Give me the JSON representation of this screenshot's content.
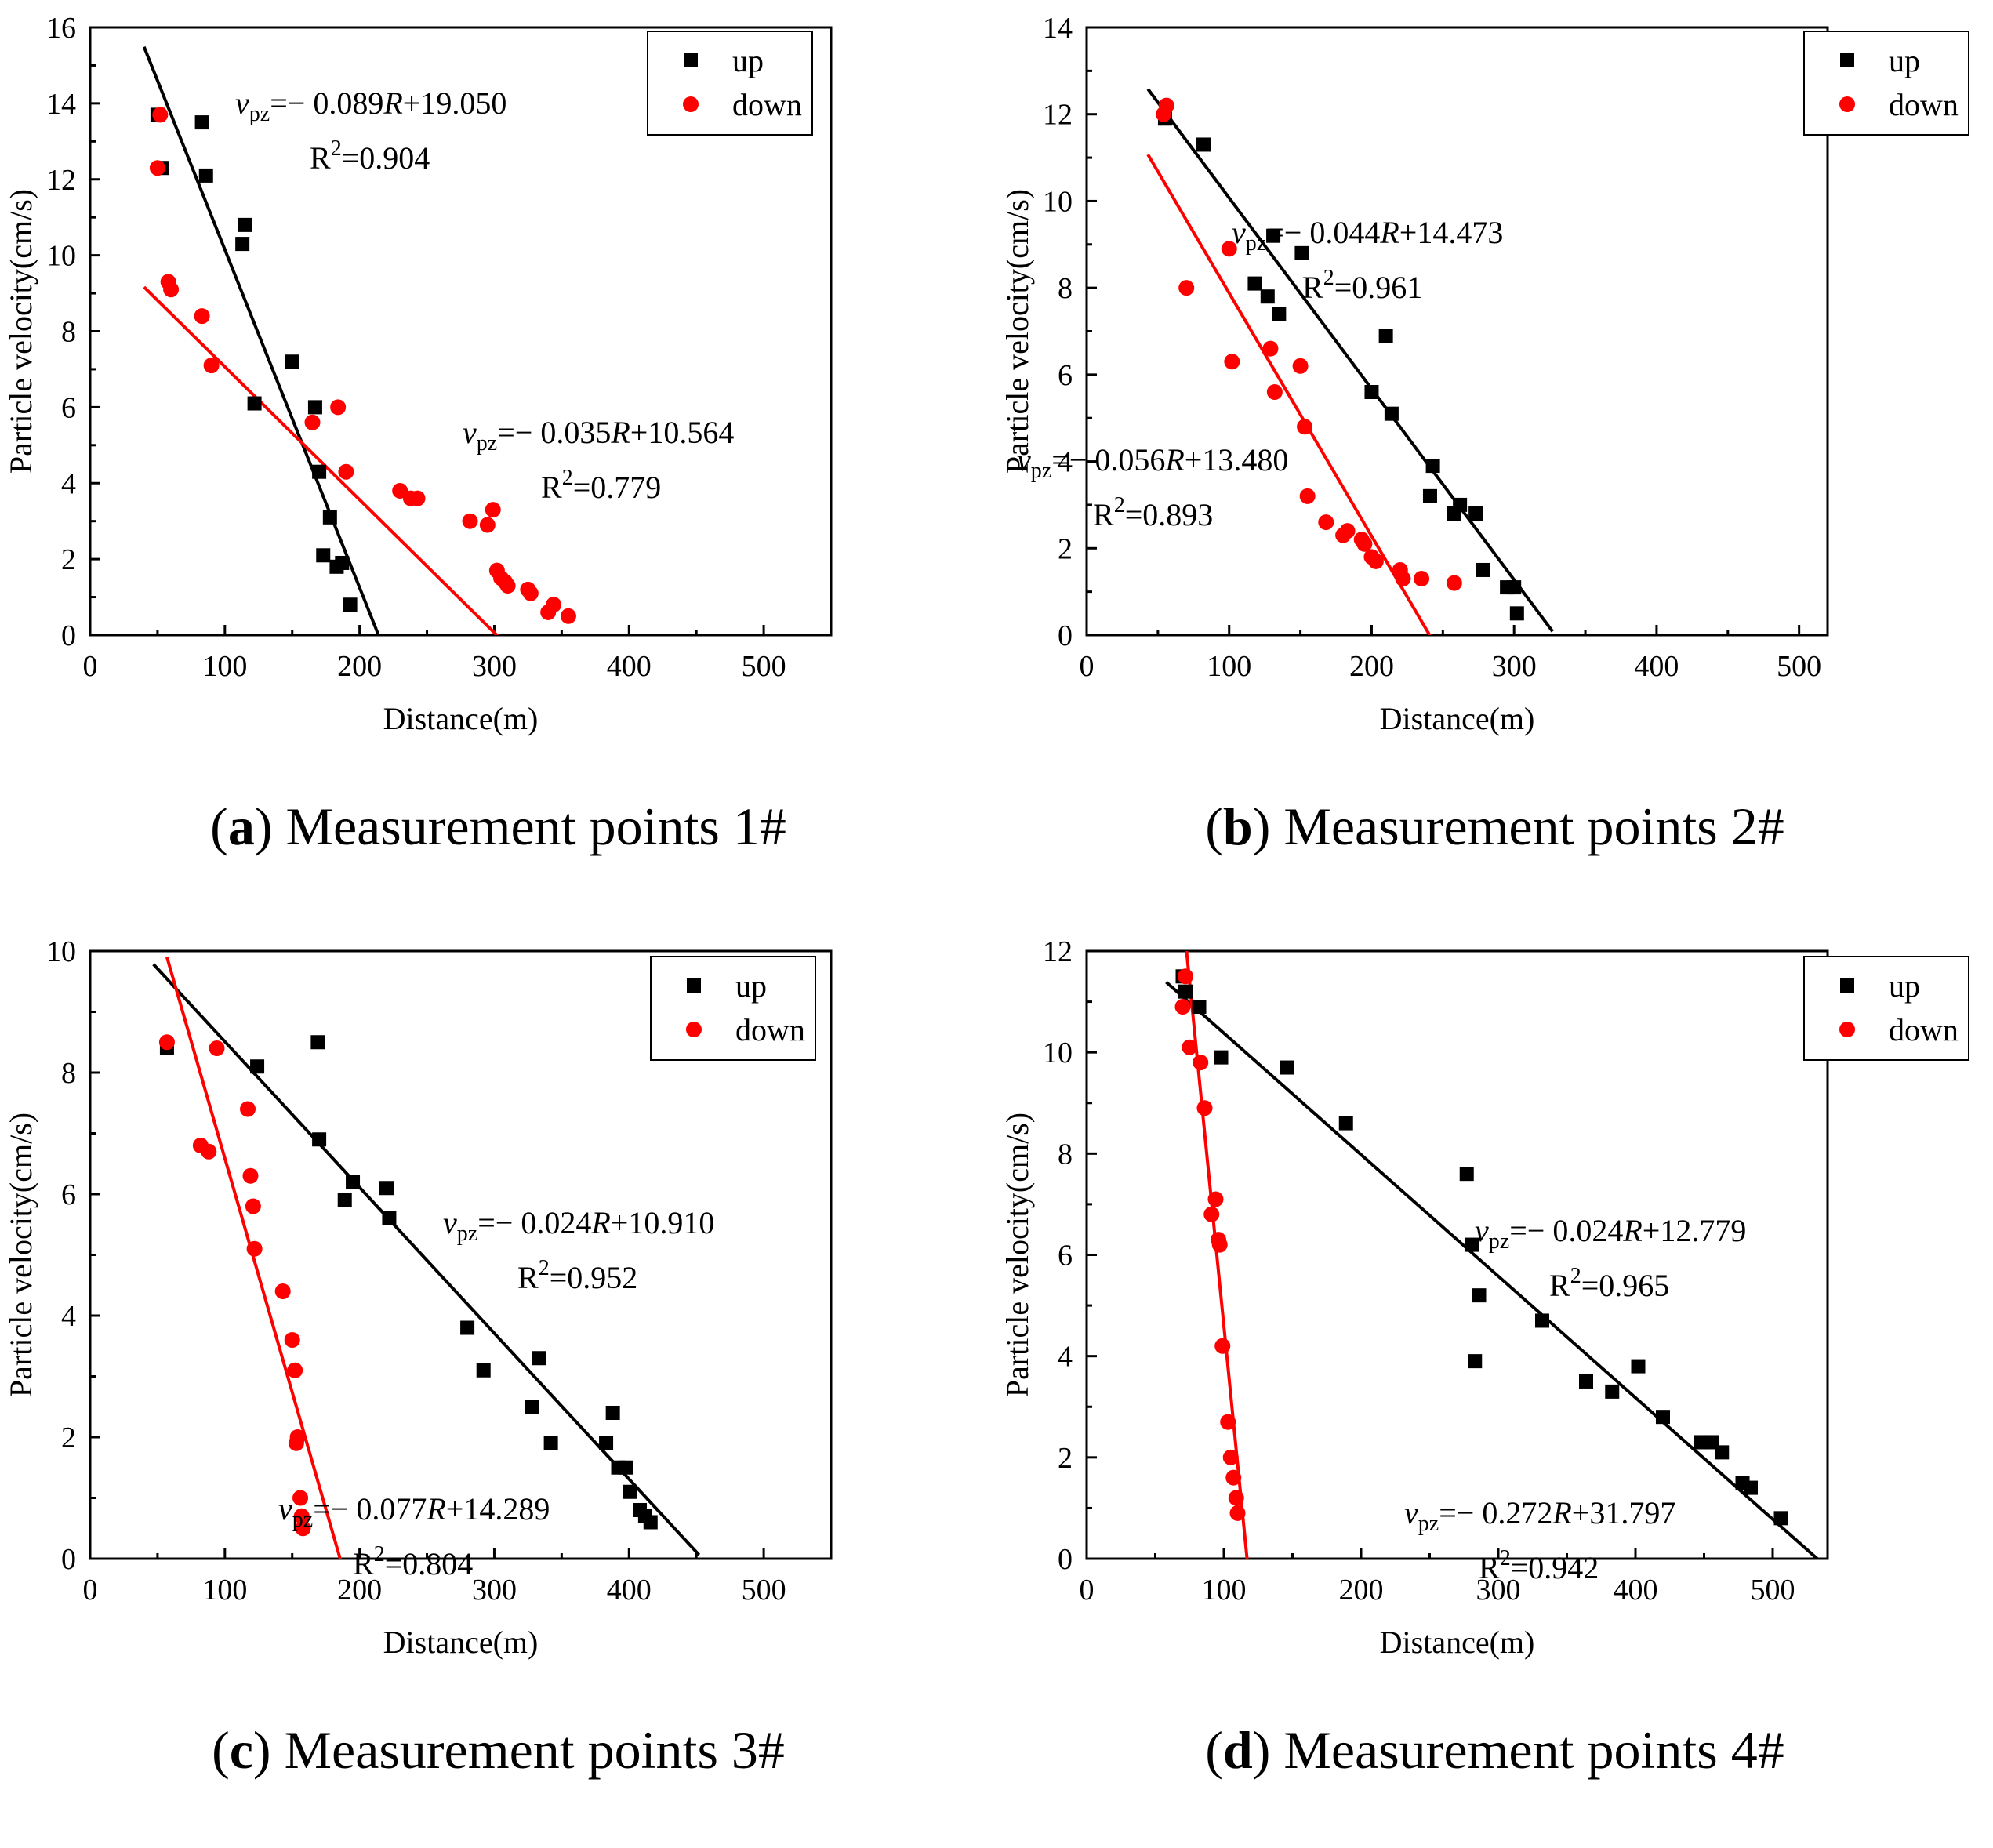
{
  "chart_data": [
    {
      "type": "scatter",
      "label": "a",
      "caption": "Measurement points 1#",
      "xlabel": "Distance(m)",
      "ylabel": "Particle velocity(cm/s)",
      "xlim": [
        0,
        550
      ],
      "ylim": [
        0,
        16
      ],
      "xticks": [
        0,
        100,
        200,
        300,
        400,
        500
      ],
      "yticks": [
        0,
        2,
        4,
        6,
        8,
        10,
        12,
        14,
        16
      ],
      "legend_position": "top-right",
      "series": [
        {
          "name": "up",
          "marker": "square",
          "color": "#000000",
          "points": [
            [
              50,
              13.7
            ],
            [
              53,
              12.3
            ],
            [
              83,
              13.5
            ],
            [
              86,
              12.1
            ],
            [
              113,
              10.3
            ],
            [
              115,
              10.8
            ],
            [
              122,
              6.1
            ],
            [
              150,
              7.2
            ],
            [
              167,
              6.0
            ],
            [
              170,
              4.3
            ],
            [
              173,
              2.1
            ],
            [
              178,
              3.1
            ],
            [
              183,
              1.8
            ],
            [
              187,
              1.9
            ],
            [
              193,
              0.8
            ]
          ],
          "fit": {
            "slope": -0.089,
            "intercept": 19.05,
            "x_range": [
              40,
              214
            ]
          },
          "equation": {
            "lead": "v",
            "sub": "pz",
            "body": "=− 0.089",
            "var": "R",
            "tail": "+19.050"
          },
          "r2": {
            "prefix": "R",
            "sup": "2",
            "value": "=0.904"
          }
        },
        {
          "name": "down",
          "marker": "circle",
          "color": "#ff0000",
          "points": [
            [
              50,
              12.3
            ],
            [
              52,
              13.7
            ],
            [
              58,
              9.3
            ],
            [
              60,
              9.1
            ],
            [
              83,
              8.4
            ],
            [
              90,
              7.1
            ],
            [
              165,
              5.6
            ],
            [
              184,
              6.0
            ],
            [
              190,
              4.3
            ],
            [
              230,
              3.8
            ],
            [
              238,
              3.6
            ],
            [
              243,
              3.6
            ],
            [
              282,
              3.0
            ],
            [
              295,
              2.9
            ],
            [
              299,
              3.3
            ],
            [
              302,
              1.7
            ],
            [
              305,
              1.5
            ],
            [
              308,
              1.4
            ],
            [
              310,
              1.3
            ],
            [
              325,
              1.2
            ],
            [
              327,
              1.1
            ],
            [
              340,
              0.6
            ],
            [
              344,
              0.8
            ],
            [
              355,
              0.5
            ]
          ],
          "fit": {
            "slope": -0.035,
            "intercept": 10.564,
            "x_range": [
              40,
              358
            ]
          },
          "equation": {
            "lead": "v",
            "sub": "pz",
            "body": "=− 0.035",
            "var": "R",
            "tail": "+10.564"
          },
          "r2": {
            "prefix": "R",
            "sup": "2",
            "value": "=0.779"
          }
        }
      ]
    },
    {
      "type": "scatter",
      "label": "b",
      "caption": "Measurement points 2#",
      "xlabel": "Distance(m)",
      "ylabel": "Particle velocity(cm/s)",
      "xlim": [
        0,
        520
      ],
      "ylim": [
        0,
        14
      ],
      "xticks": [
        0,
        100,
        200,
        300,
        400,
        500
      ],
      "yticks": [
        0,
        2,
        4,
        6,
        8,
        10,
        12,
        14
      ],
      "legend_position": "top-right",
      "series": [
        {
          "name": "up",
          "marker": "square",
          "color": "#000000",
          "points": [
            [
              55,
              11.9
            ],
            [
              82,
              11.3
            ],
            [
              118,
              8.1
            ],
            [
              127,
              7.8
            ],
            [
              131,
              9.2
            ],
            [
              135,
              7.4
            ],
            [
              151,
              8.8
            ],
            [
              210,
              6.9
            ],
            [
              200,
              5.6
            ],
            [
              214,
              5.1
            ],
            [
              243,
              3.9
            ],
            [
              241,
              3.2
            ],
            [
              258,
              2.8
            ],
            [
              262,
              3.0
            ],
            [
              273,
              2.8
            ],
            [
              278,
              1.5
            ],
            [
              295,
              1.1
            ],
            [
              300,
              1.1
            ],
            [
              302,
              0.5
            ]
          ],
          "fit": {
            "slope": -0.044,
            "intercept": 14.473,
            "x_range": [
              43,
              327
            ]
          },
          "equation": {
            "lead": "v",
            "sub": "pz",
            "body": "=− 0.044",
            "var": "R",
            "tail": "+14.473"
          },
          "r2": {
            "prefix": "R",
            "sup": "2",
            "value": "=0.961"
          }
        },
        {
          "name": "down",
          "marker": "circle",
          "color": "#ff0000",
          "points": [
            [
              54,
              12.0
            ],
            [
              56,
              12.2
            ],
            [
              70,
              8.0
            ],
            [
              100,
              8.9
            ],
            [
              102,
              6.3
            ],
            [
              129,
              6.6
            ],
            [
              132,
              5.6
            ],
            [
              150,
              6.2
            ],
            [
              153,
              4.8
            ],
            [
              155,
              3.2
            ],
            [
              168,
              2.6
            ],
            [
              180,
              2.3
            ],
            [
              183,
              2.4
            ],
            [
              193,
              2.2
            ],
            [
              195,
              2.1
            ],
            [
              200,
              1.8
            ],
            [
              203,
              1.7
            ],
            [
              220,
              1.5
            ],
            [
              222,
              1.3
            ],
            [
              235,
              1.3
            ],
            [
              258,
              1.2
            ]
          ],
          "fit": {
            "slope": -0.056,
            "intercept": 13.48,
            "x_range": [
              43,
              241
            ]
          },
          "equation": {
            "lead": "v",
            "sub": "pz",
            "body": "=− 0.056",
            "var": "R",
            "tail": "+13.480"
          },
          "r2": {
            "prefix": "R",
            "sup": "2",
            "value": "=0.893"
          }
        }
      ]
    },
    {
      "type": "scatter",
      "label": "c",
      "caption": "Measurement points 3#",
      "xlabel": "Distance(m)",
      "ylabel": "Particle velocity(cm/s)",
      "xlim": [
        0,
        550
      ],
      "ylim": [
        0,
        10
      ],
      "xticks": [
        0,
        100,
        200,
        300,
        400,
        500
      ],
      "yticks": [
        0,
        2,
        4,
        6,
        8,
        10
      ],
      "legend_position": "top-right",
      "series": [
        {
          "name": "up",
          "marker": "square",
          "color": "#000000",
          "points": [
            [
              57,
              8.4
            ],
            [
              124,
              8.1
            ],
            [
              169,
              8.5
            ],
            [
              170,
              6.9
            ],
            [
              189,
              5.9
            ],
            [
              195,
              6.2
            ],
            [
              220,
              6.1
            ],
            [
              222,
              5.6
            ],
            [
              280,
              3.8
            ],
            [
              292,
              3.1
            ],
            [
              328,
              2.5
            ],
            [
              333,
              3.3
            ],
            [
              342,
              1.9
            ],
            [
              383,
              1.9
            ],
            [
              388,
              2.4
            ],
            [
              392,
              1.5
            ],
            [
              398,
              1.5
            ],
            [
              401,
              1.1
            ],
            [
              408,
              0.8
            ],
            [
              412,
              0.7
            ],
            [
              416,
              0.6
            ]
          ],
          "fit": {
            "slope": -0.024,
            "intercept": 10.91,
            "x_range": [
              47,
              452
            ]
          },
          "equation": {
            "lead": "v",
            "sub": "pz",
            "body": "=− 0.024",
            "var": "R",
            "tail": "+10.910"
          },
          "r2": {
            "prefix": "R",
            "sup": "2",
            "value": "=0.952"
          }
        },
        {
          "name": "down",
          "marker": "circle",
          "color": "#ff0000",
          "points": [
            [
              57,
              8.5
            ],
            [
              82,
              6.8
            ],
            [
              88,
              6.7
            ],
            [
              94,
              8.4
            ],
            [
              117,
              7.4
            ],
            [
              119,
              6.3
            ],
            [
              121,
              5.8
            ],
            [
              122,
              5.1
            ],
            [
              143,
              4.4
            ],
            [
              150,
              3.6
            ],
            [
              152,
              3.1
            ],
            [
              153,
              1.9
            ],
            [
              154,
              2.0
            ],
            [
              156,
              1.0
            ],
            [
              157,
              0.7
            ],
            [
              158,
              0.5
            ]
          ],
          "fit": {
            "slope": -0.077,
            "intercept": 14.289,
            "x_range": [
              57,
              186
            ]
          },
          "equation": {
            "lead": "v",
            "sub": "pz",
            "body": "=− 0.077",
            "var": "R",
            "tail": "+14.289"
          },
          "r2": {
            "prefix": "R",
            "sup": "2",
            "value": "=0.804"
          }
        }
      ]
    },
    {
      "type": "scatter",
      "label": "d",
      "caption": "Measurement points 4#",
      "xlabel": "Distance(m)",
      "ylabel": "Particle velocity(cm/s)",
      "xlim": [
        0,
        540
      ],
      "ylim": [
        0,
        12
      ],
      "xticks": [
        0,
        100,
        200,
        300,
        400,
        500
      ],
      "yticks": [
        0,
        2,
        4,
        6,
        8,
        10,
        12
      ],
      "legend_position": "top-right",
      "series": [
        {
          "name": "up",
          "marker": "square",
          "color": "#000000",
          "points": [
            [
              70,
              11.5
            ],
            [
              72,
              11.2
            ],
            [
              82,
              10.9
            ],
            [
              98,
              9.9
            ],
            [
              146,
              9.7
            ],
            [
              189,
              8.6
            ],
            [
              277,
              7.6
            ],
            [
              281,
              6.2
            ],
            [
              283,
              3.9
            ],
            [
              286,
              5.2
            ],
            [
              332,
              4.7
            ],
            [
              364,
              3.5
            ],
            [
              383,
              3.3
            ],
            [
              402,
              3.8
            ],
            [
              420,
              2.8
            ],
            [
              448,
              2.3
            ],
            [
              456,
              2.3
            ],
            [
              463,
              2.1
            ],
            [
              478,
              1.5
            ],
            [
              484,
              1.4
            ],
            [
              506,
              0.8
            ]
          ],
          "fit": {
            "slope": -0.024,
            "intercept": 12.779,
            "x_range": [
              58,
              538
            ]
          },
          "equation": {
            "lead": "v",
            "sub": "pz",
            "body": "=− 0.024",
            "var": "R",
            "tail": "+12.779"
          },
          "r2": {
            "prefix": "R",
            "sup": "2",
            "value": "=0.965"
          }
        },
        {
          "name": "down",
          "marker": "circle",
          "color": "#ff0000",
          "points": [
            [
              70,
              10.9
            ],
            [
              72,
              11.5
            ],
            [
              75,
              10.1
            ],
            [
              83,
              9.8
            ],
            [
              86,
              8.9
            ],
            [
              91,
              6.8
            ],
            [
              94,
              7.1
            ],
            [
              96,
              6.3
            ],
            [
              97,
              6.2
            ],
            [
              99,
              4.2
            ],
            [
              103,
              2.7
            ],
            [
              105,
              2.0
            ],
            [
              107,
              1.6
            ],
            [
              109,
              1.2
            ],
            [
              110,
              0.9
            ]
          ],
          "fit": {
            "slope": -0.272,
            "intercept": 31.797,
            "x_range": [
              72,
              116.9
            ]
          },
          "equation": {
            "lead": "v",
            "sub": "pz",
            "body": "=− 0.272",
            "var": "R",
            "tail": "+31.797"
          },
          "r2": {
            "prefix": "R",
            "sup": "2",
            "value": "=0.942"
          }
        }
      ]
    }
  ]
}
